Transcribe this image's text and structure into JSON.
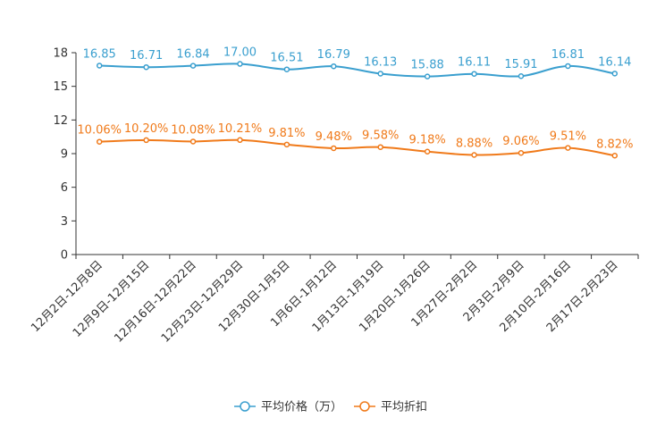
{
  "chart_data": {
    "type": "line",
    "categories": [
      "12月2日-12月8日",
      "12月9日-12月15日",
      "12月16日-12月22日",
      "12月23日-12月29日",
      "12月30日-1月5日",
      "1月6日-1月12日",
      "1月13日-1月19日",
      "1月20日-1月26日",
      "1月27日-2月2日",
      "2月3日-2月9日",
      "2月10日-2月16日",
      "2月17日-2月23日"
    ],
    "yticks": [
      "0",
      "3",
      "6",
      "9",
      "12",
      "15",
      "18"
    ],
    "ylim": [
      0,
      18
    ],
    "legend_position": "bottom-center",
    "series": [
      {
        "name": "平均价格（万）",
        "color": "#3a9fcf",
        "values": [
          16.85,
          16.71,
          16.84,
          17.0,
          16.51,
          16.79,
          16.13,
          15.88,
          16.11,
          15.91,
          16.81,
          16.14
        ],
        "labels": [
          "16.85",
          "16.71",
          "16.84",
          "17.00",
          "16.51",
          "16.79",
          "16.13",
          "15.88",
          "16.11",
          "15.91",
          "16.81",
          "16.14"
        ]
      },
      {
        "name": "平均折扣",
        "color": "#f07a1a",
        "values": [
          10.06,
          10.2,
          10.08,
          10.21,
          9.81,
          9.48,
          9.58,
          9.18,
          8.88,
          9.06,
          9.51,
          8.82
        ],
        "labels": [
          "10.06%",
          "10.20%",
          "10.08%",
          "10.21%",
          "9.81%",
          "9.48%",
          "9.58%",
          "9.18%",
          "8.88%",
          "9.06%",
          "9.51%",
          "8.82%"
        ]
      }
    ]
  }
}
